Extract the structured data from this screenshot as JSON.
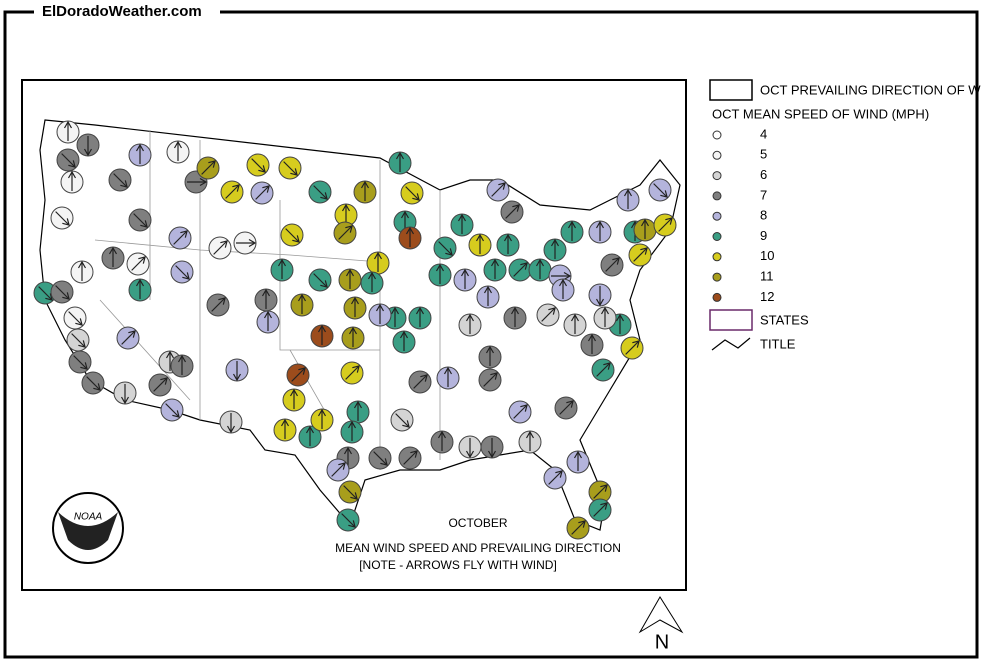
{
  "site": "ElDoradoWeather.com",
  "legend": {
    "direction": "OCT PREVAILING DIRECTION OF W",
    "speed_title": "OCT MEAN SPEED OF WIND (MPH)",
    "speeds": [
      {
        "value": 4,
        "color": "#ffffff"
      },
      {
        "value": 5,
        "color": "#f4f4f4"
      },
      {
        "value": 6,
        "color": "#d4d4d4"
      },
      {
        "value": 7,
        "color": "#7f7f7f"
      },
      {
        "value": 8,
        "color": "#b4b4dc"
      },
      {
        "value": 9,
        "color": "#3a9e84"
      },
      {
        "value": 10,
        "color": "#d6cc1e"
      },
      {
        "value": 11,
        "color": "#a89e1c"
      },
      {
        "value": 12,
        "color": "#9c4c1c"
      }
    ],
    "states": "STATES",
    "title": "TITLE"
  },
  "map": {
    "month": "OCTOBER",
    "caption": "MEAN WIND SPEED AND PREVAILING DIRECTION",
    "note": "[NOTE - ARROWS FLY WITH WIND]",
    "logo": "NOAA",
    "stations": {
      "speeds": [
        5,
        7,
        7,
        5,
        5,
        8,
        5,
        7,
        7,
        11,
        10,
        10,
        7,
        7,
        5,
        8,
        10,
        8,
        5,
        5,
        8,
        9,
        9,
        7,
        5,
        5,
        6,
        7,
        7,
        8,
        6,
        6,
        7,
        7,
        8,
        7,
        8,
        6,
        9,
        10,
        10,
        11,
        11,
        9,
        10,
        9,
        12,
        12,
        12,
        10,
        10,
        10,
        9,
        10,
        9,
        9,
        7,
        8,
        11,
        9,
        7,
        6,
        7,
        7,
        8,
        7,
        6,
        7,
        6,
        7,
        8,
        8,
        8,
        11,
        11,
        9,
        7,
        9,
        10,
        9,
        7,
        7,
        6,
        7,
        6,
        6,
        8,
        8,
        9,
        9,
        9,
        9,
        8,
        11,
        11,
        11,
        7,
        8,
        9,
        9,
        11,
        10,
        9,
        9,
        9,
        10,
        9,
        9,
        9,
        9,
        8,
        8,
        7,
        9,
        9,
        8,
        8,
        8,
        9,
        10,
        7,
        8,
        6,
        8,
        11,
        10
      ],
      "directions": [
        0,
        180,
        135,
        0,
        135,
        0,
        0,
        135,
        90,
        45,
        135,
        135,
        135,
        0,
        45,
        45,
        45,
        45,
        90,
        45,
        135,
        0,
        135,
        135,
        0,
        135,
        135,
        135,
        135,
        45,
        180,
        0,
        0,
        45,
        135,
        45,
        180,
        180,
        135,
        135,
        0,
        0,
        45,
        0,
        135,
        0,
        0,
        45,
        0,
        45,
        0,
        0,
        0,
        0,
        0,
        0,
        0,
        45,
        135,
        135,
        135,
        135,
        45,
        45,
        0,
        0,
        180,
        180,
        0,
        45,
        45,
        45,
        0,
        45,
        45,
        45,
        45,
        45,
        45,
        0,
        0,
        0,
        0,
        0,
        45,
        0,
        0,
        0,
        0,
        0,
        0,
        0,
        0,
        0,
        0,
        0,
        0,
        0,
        0,
        135,
        0,
        0,
        0,
        135,
        0,
        0,
        0,
        0,
        45,
        0,
        90,
        45,
        45,
        0,
        0,
        0,
        0,
        135,
        0,
        45,
        45,
        180,
        0,
        0,
        0,
        45
      ]
    }
  },
  "compass": "N"
}
